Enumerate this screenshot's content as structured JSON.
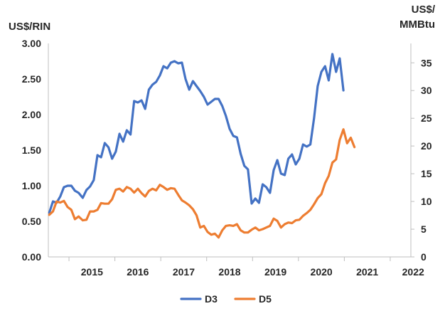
{
  "chart_data": {
    "type": "line",
    "left_axis_label": "US$/RIN",
    "right_axis_label_lines": [
      "US$/",
      "MMBtu"
    ],
    "left_ylim": [
      0,
      3
    ],
    "left_ticks": [
      "0.00",
      "0.50",
      "1.00",
      "1.50",
      "2.00",
      "2.50",
      "3.00"
    ],
    "right_ylim": [
      0,
      38.5
    ],
    "right_ticks": [
      "0",
      "5",
      "10",
      "15",
      "20",
      "25",
      "30",
      "35"
    ],
    "xlim": [
      2014.55,
      2022.45
    ],
    "x_ticks": [
      "2015",
      "2016",
      "2017",
      "2018",
      "2019",
      "2020",
      "2021",
      "2022"
    ],
    "grid": false,
    "legend_position": "bottom",
    "series": [
      {
        "name": "D3",
        "color": "#4472C4",
        "axis": "left",
        "points": [
          [
            2014.57,
            0.62
          ],
          [
            2014.65,
            0.78
          ],
          [
            2014.73,
            0.76
          ],
          [
            2014.81,
            0.85
          ],
          [
            2014.89,
            0.98
          ],
          [
            2014.97,
            1.0
          ],
          [
            2015.05,
            1.0
          ],
          [
            2015.13,
            0.93
          ],
          [
            2015.21,
            0.9
          ],
          [
            2015.3,
            0.83
          ],
          [
            2015.38,
            0.94
          ],
          [
            2015.46,
            0.99
          ],
          [
            2015.54,
            1.08
          ],
          [
            2015.62,
            1.43
          ],
          [
            2015.7,
            1.4
          ],
          [
            2015.78,
            1.6
          ],
          [
            2015.86,
            1.54
          ],
          [
            2015.94,
            1.38
          ],
          [
            2016.02,
            1.48
          ],
          [
            2016.1,
            1.73
          ],
          [
            2016.18,
            1.62
          ],
          [
            2016.26,
            1.78
          ],
          [
            2016.34,
            1.72
          ],
          [
            2016.42,
            2.19
          ],
          [
            2016.5,
            2.17
          ],
          [
            2016.58,
            2.2
          ],
          [
            2016.66,
            2.08
          ],
          [
            2016.74,
            2.35
          ],
          [
            2016.82,
            2.42
          ],
          [
            2016.9,
            2.46
          ],
          [
            2016.98,
            2.55
          ],
          [
            2017.06,
            2.68
          ],
          [
            2017.14,
            2.65
          ],
          [
            2017.22,
            2.73
          ],
          [
            2017.3,
            2.75
          ],
          [
            2017.38,
            2.72
          ],
          [
            2017.46,
            2.73
          ],
          [
            2017.54,
            2.5
          ],
          [
            2017.62,
            2.35
          ],
          [
            2017.7,
            2.47
          ],
          [
            2017.78,
            2.4
          ],
          [
            2017.86,
            2.33
          ],
          [
            2017.94,
            2.25
          ],
          [
            2018.02,
            2.14
          ],
          [
            2018.1,
            2.18
          ],
          [
            2018.18,
            2.22
          ],
          [
            2018.26,
            2.22
          ],
          [
            2018.34,
            2.12
          ],
          [
            2018.42,
            1.98
          ],
          [
            2018.5,
            1.8
          ],
          [
            2018.58,
            1.7
          ],
          [
            2018.66,
            1.68
          ],
          [
            2018.74,
            1.45
          ],
          [
            2018.82,
            1.28
          ],
          [
            2018.9,
            1.23
          ],
          [
            2018.98,
            0.75
          ],
          [
            2019.06,
            0.82
          ],
          [
            2019.14,
            0.76
          ],
          [
            2019.22,
            1.02
          ],
          [
            2019.3,
            0.98
          ],
          [
            2019.38,
            0.9
          ],
          [
            2019.46,
            1.22
          ],
          [
            2019.54,
            1.36
          ],
          [
            2019.62,
            1.17
          ],
          [
            2019.7,
            1.15
          ],
          [
            2019.78,
            1.38
          ],
          [
            2019.86,
            1.44
          ],
          [
            2019.94,
            1.3
          ],
          [
            2020.02,
            1.38
          ],
          [
            2020.1,
            1.58
          ],
          [
            2020.18,
            1.55
          ],
          [
            2020.26,
            1.58
          ],
          [
            2020.34,
            1.95
          ],
          [
            2020.42,
            2.4
          ],
          [
            2020.5,
            2.6
          ],
          [
            2020.58,
            2.68
          ],
          [
            2020.66,
            2.48
          ],
          [
            2020.74,
            2.85
          ],
          [
            2020.82,
            2.6
          ],
          [
            2020.9,
            2.79
          ],
          [
            2020.98,
            2.34
          ]
        ]
      },
      {
        "name": "D5",
        "color": "#ED7D31",
        "axis": "right",
        "points": [
          [
            2014.57,
            7.6
          ],
          [
            2014.65,
            8.2
          ],
          [
            2014.73,
            10.0
          ],
          [
            2014.81,
            9.8
          ],
          [
            2014.89,
            10.1
          ],
          [
            2014.97,
            9.0
          ],
          [
            2015.05,
            8.5
          ],
          [
            2015.13,
            6.8
          ],
          [
            2015.21,
            7.3
          ],
          [
            2015.3,
            6.6
          ],
          [
            2015.38,
            6.7
          ],
          [
            2015.46,
            8.2
          ],
          [
            2015.54,
            8.2
          ],
          [
            2015.62,
            8.5
          ],
          [
            2015.7,
            9.7
          ],
          [
            2015.78,
            9.6
          ],
          [
            2015.86,
            9.6
          ],
          [
            2015.94,
            10.4
          ],
          [
            2016.02,
            12.1
          ],
          [
            2016.1,
            12.3
          ],
          [
            2016.18,
            11.8
          ],
          [
            2016.26,
            12.6
          ],
          [
            2016.34,
            12.3
          ],
          [
            2016.42,
            11.6
          ],
          [
            2016.5,
            12.3
          ],
          [
            2016.58,
            11.5
          ],
          [
            2016.66,
            10.9
          ],
          [
            2016.74,
            11.9
          ],
          [
            2016.82,
            12.3
          ],
          [
            2016.9,
            12.0
          ],
          [
            2016.98,
            13.0
          ],
          [
            2017.06,
            12.6
          ],
          [
            2017.14,
            12.1
          ],
          [
            2017.22,
            12.4
          ],
          [
            2017.3,
            12.3
          ],
          [
            2017.38,
            11.2
          ],
          [
            2017.46,
            10.2
          ],
          [
            2017.54,
            9.8
          ],
          [
            2017.62,
            9.3
          ],
          [
            2017.7,
            8.6
          ],
          [
            2017.78,
            7.5
          ],
          [
            2017.86,
            5.3
          ],
          [
            2017.94,
            5.6
          ],
          [
            2018.02,
            4.5
          ],
          [
            2018.1,
            4.0
          ],
          [
            2018.18,
            4.2
          ],
          [
            2018.26,
            3.5
          ],
          [
            2018.34,
            4.8
          ],
          [
            2018.42,
            5.6
          ],
          [
            2018.5,
            5.7
          ],
          [
            2018.58,
            5.6
          ],
          [
            2018.66,
            5.9
          ],
          [
            2018.74,
            4.8
          ],
          [
            2018.82,
            4.4
          ],
          [
            2018.9,
            4.4
          ],
          [
            2018.98,
            4.9
          ],
          [
            2019.06,
            5.3
          ],
          [
            2019.14,
            4.8
          ],
          [
            2019.22,
            5.0
          ],
          [
            2019.3,
            5.3
          ],
          [
            2019.38,
            5.6
          ],
          [
            2019.46,
            6.9
          ],
          [
            2019.54,
            6.5
          ],
          [
            2019.62,
            5.3
          ],
          [
            2019.7,
            5.9
          ],
          [
            2019.78,
            6.2
          ],
          [
            2019.86,
            6.1
          ],
          [
            2019.94,
            6.6
          ],
          [
            2020.02,
            6.7
          ],
          [
            2020.1,
            7.4
          ],
          [
            2020.18,
            7.9
          ],
          [
            2020.26,
            8.5
          ],
          [
            2020.34,
            9.5
          ],
          [
            2020.42,
            10.6
          ],
          [
            2020.5,
            11.3
          ],
          [
            2020.58,
            13.3
          ],
          [
            2020.66,
            14.6
          ],
          [
            2020.74,
            17.0
          ],
          [
            2020.82,
            17.6
          ],
          [
            2020.9,
            21.1
          ],
          [
            2020.98,
            23.0
          ],
          [
            2021.06,
            20.5
          ],
          [
            2021.14,
            21.5
          ],
          [
            2021.22,
            19.8
          ]
        ]
      }
    ]
  }
}
